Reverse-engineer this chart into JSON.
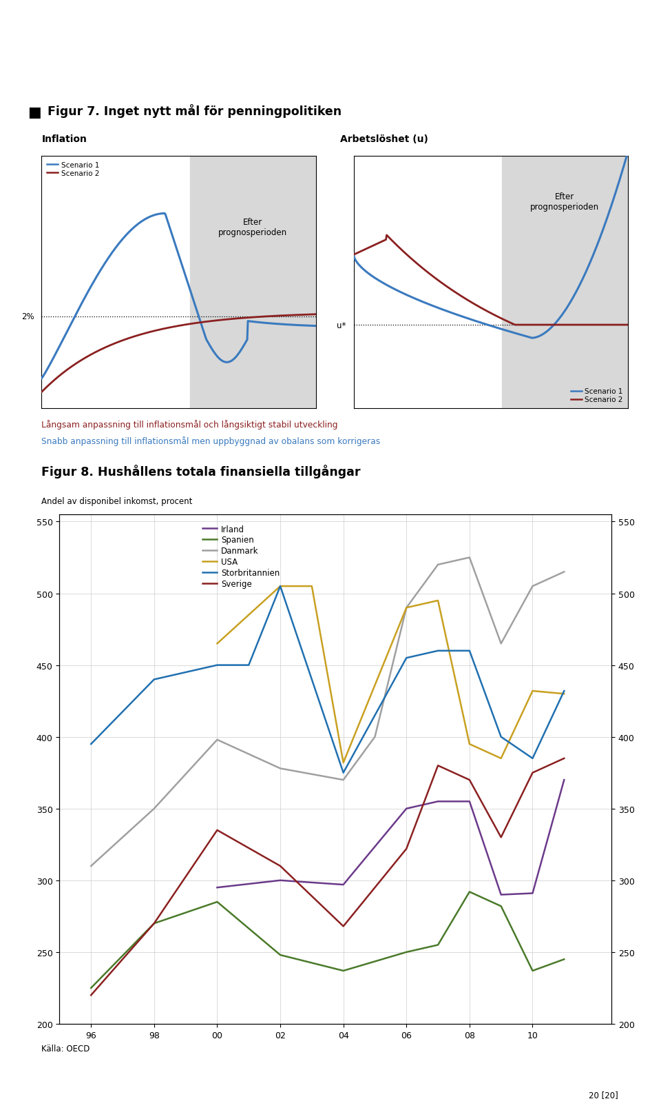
{
  "fig_title": "Figur 7. Inget nytt mål för penningpolitiken",
  "fig8_title": "Figur 8. Hushållens totala finansiella tillgångar",
  "fig8_subtitle": "Andel av disponibel inkomst, procent",
  "fig8_source": "Källa: OECD",
  "scenario1_label": "Scenario 1",
  "scenario2_label": "Scenario 2",
  "inflation_label": "Inflation",
  "unemployment_label": "Arbetslöshet (u)",
  "efter_text": "Efter\nprognosperioden",
  "two_pct_label": "2%",
  "ustar_label": "u*",
  "legend_line1_red": "Långsam anpassning till inflationsmål och långsiktigt stabil utveckling",
  "legend_line2_blue": "Snabb anpassning till inflationsmål men uppbyggnad av obalans som korrigeras",
  "color_scenario1": "#3a7abf",
  "color_scenario2": "#8b2020",
  "color_shade": "#d8d8d8",
  "irland_color": "#6b3a8a",
  "spanien_color": "#4a7a2a",
  "danmark_color": "#a0a0a0",
  "usa_color": "#c8a020",
  "storbritannien_color": "#2070b0",
  "sverige_color": "#8b2020",
  "page_num": "20 [20]",
  "irland_x": [
    100,
    102,
    104,
    106,
    107,
    108,
    109,
    110,
    111
  ],
  "irland_y": [
    295,
    300,
    297,
    350,
    355,
    355,
    290,
    291,
    370
  ],
  "spanien_x": [
    96,
    98,
    100,
    102,
    104,
    106,
    107,
    108,
    109,
    110,
    111
  ],
  "spanien_y": [
    225,
    270,
    285,
    248,
    237,
    250,
    255,
    292,
    282,
    237,
    245
  ],
  "danmark_x": [
    96,
    98,
    100,
    102,
    104,
    105,
    106,
    107,
    108,
    109,
    110,
    111
  ],
  "danmark_y": [
    310,
    350,
    398,
    378,
    370,
    400,
    490,
    520,
    525,
    465,
    505,
    515
  ],
  "usa_x": [
    100,
    102,
    103,
    104,
    106,
    107,
    108,
    109,
    110,
    111
  ],
  "usa_y": [
    465,
    505,
    505,
    382,
    490,
    495,
    395,
    385,
    432,
    430
  ],
  "storbritannien_x": [
    96,
    98,
    100,
    101,
    102,
    104,
    106,
    107,
    108,
    109,
    110,
    111
  ],
  "storbritannien_y": [
    395,
    440,
    450,
    450,
    505,
    375,
    455,
    460,
    460,
    400,
    385,
    432
  ],
  "sverige_x": [
    96,
    98,
    100,
    102,
    104,
    106,
    107,
    108,
    109,
    110,
    111
  ],
  "sverige_y": [
    220,
    270,
    335,
    310,
    268,
    322,
    380,
    370,
    330,
    375,
    385
  ]
}
